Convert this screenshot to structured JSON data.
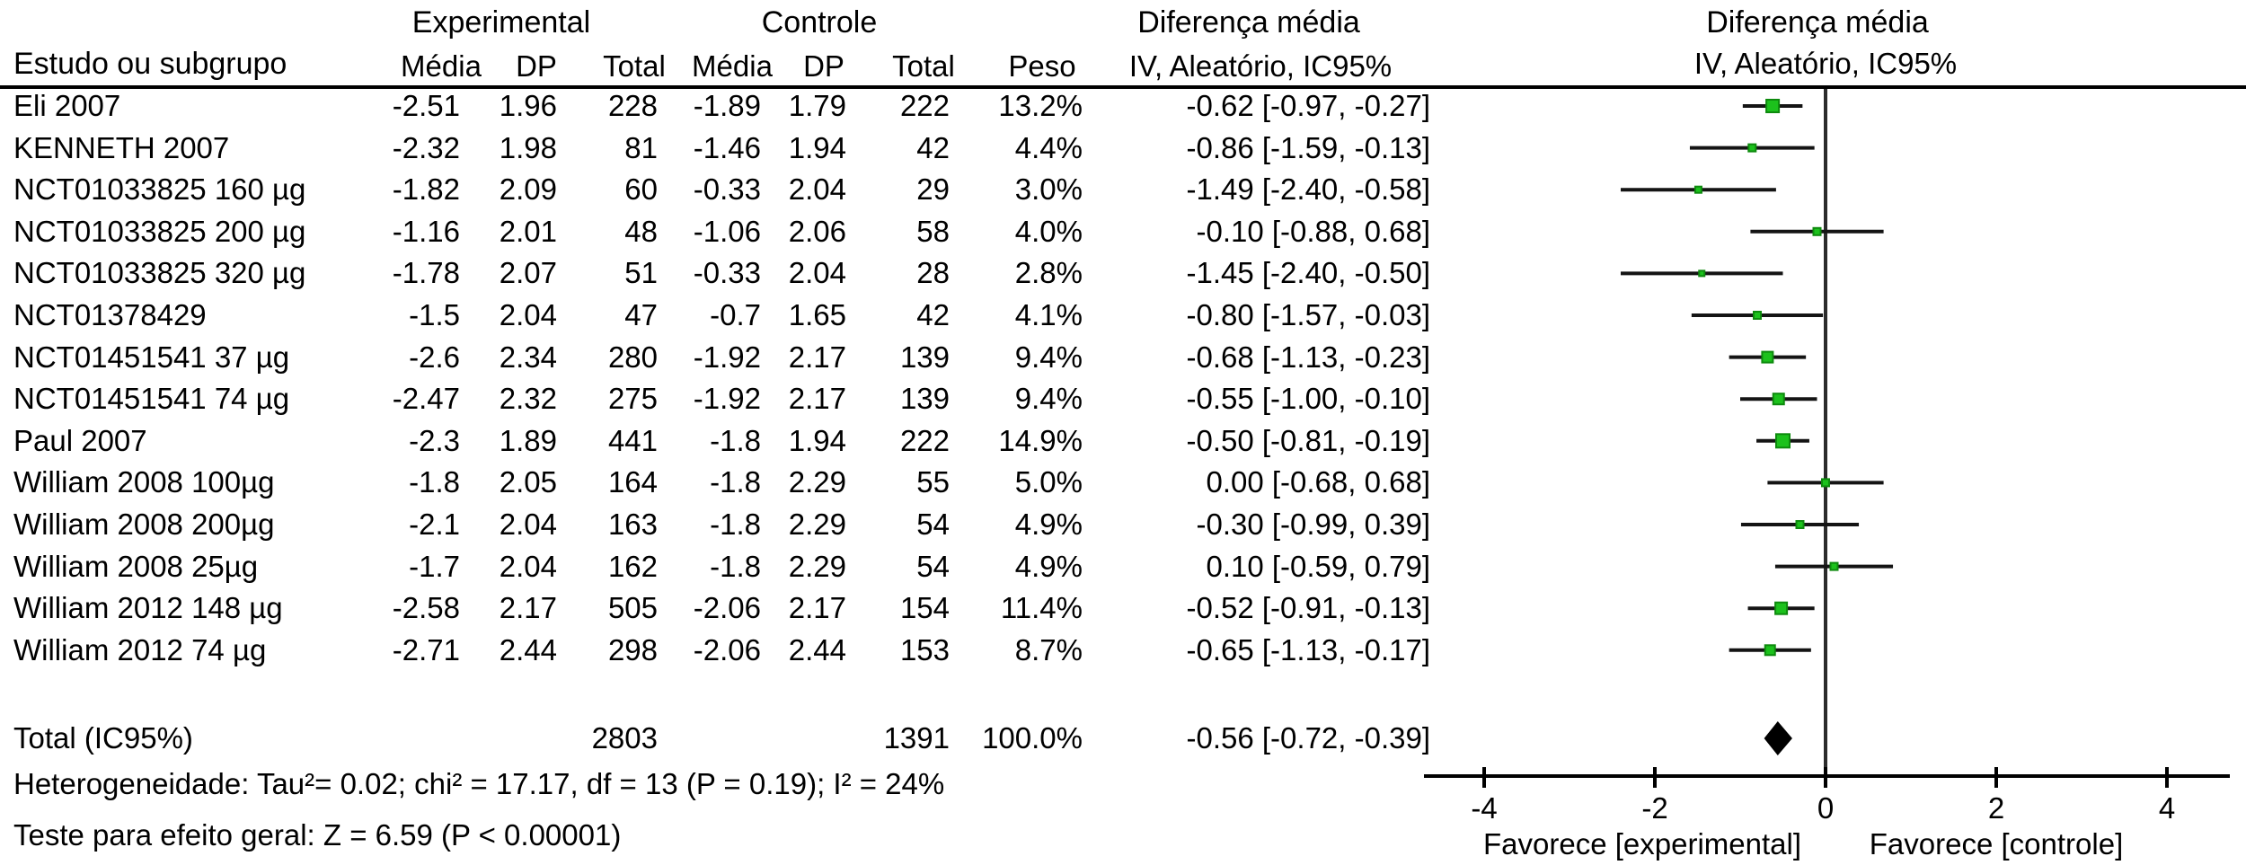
{
  "header": {
    "study_col": "Estudo ou subgrupo",
    "group_experimental": "Experimental",
    "group_control": "Controle",
    "group_effect": "Diferença média",
    "sub_mean_e": "Média",
    "sub_sd_e": "DP",
    "sub_total_e": "Total",
    "sub_mean_c": "Média",
    "sub_sd_c": "DP",
    "sub_total_c": "Total",
    "sub_weight": "Peso",
    "sub_effect": "IV, Aleatório,  IC95%",
    "plot_title": "Diferença média",
    "plot_subtitle": "IV,  Aleatório,  IC95%"
  },
  "chart_data": {
    "type": "forest",
    "effect_measure": "Diferença média (IV, Aleatório, IC95%)",
    "axis": {
      "ticks": [
        -4,
        -2,
        0,
        2,
        4
      ],
      "min": -4.65,
      "max": 4.75,
      "grid": false,
      "favors_left": "Favorece [experimental]",
      "favors_right": "Favorece [controle]"
    },
    "marker_color": "#1cc11c",
    "marker_edge": "#0d8a0d",
    "studies": [
      {
        "name": "Eli 2007",
        "mean_e": "-2.51",
        "sd_e": "1.96",
        "total_e": "228",
        "mean_c": "-1.89",
        "sd_c": "1.79",
        "total_c": "222",
        "weight": "13.2%",
        "effect": "-0.62 [-0.97, -0.27]",
        "est": -0.62,
        "lo": -0.97,
        "hi": -0.27,
        "w": 13.2
      },
      {
        "name": "KENNETH 2007",
        "mean_e": "-2.32",
        "sd_e": "1.98",
        "total_e": "81",
        "mean_c": "-1.46",
        "sd_c": "1.94",
        "total_c": "42",
        "weight": "4.4%",
        "effect": "-0.86 [-1.59, -0.13]",
        "est": -0.86,
        "lo": -1.59,
        "hi": -0.13,
        "w": 4.4
      },
      {
        "name": "NCT01033825 160 µg",
        "mean_e": "-1.82",
        "sd_e": "2.09",
        "total_e": "60",
        "mean_c": "-0.33",
        "sd_c": "2.04",
        "total_c": "29",
        "weight": "3.0%",
        "effect": "-1.49 [-2.40, -0.58]",
        "est": -1.49,
        "lo": -2.4,
        "hi": -0.58,
        "w": 3.0
      },
      {
        "name": "NCT01033825 200 µg",
        "mean_e": "-1.16",
        "sd_e": "2.01",
        "total_e": "48",
        "mean_c": "-1.06",
        "sd_c": "2.06",
        "total_c": "58",
        "weight": "4.0%",
        "effect": "-0.10 [-0.88, 0.68]",
        "est": -0.1,
        "lo": -0.88,
        "hi": 0.68,
        "w": 4.0
      },
      {
        "name": "NCT01033825 320 µg",
        "mean_e": "-1.78",
        "sd_e": "2.07",
        "total_e": "51",
        "mean_c": "-0.33",
        "sd_c": "2.04",
        "total_c": "28",
        "weight": "2.8%",
        "effect": "-1.45 [-2.40, -0.50]",
        "est": -1.45,
        "lo": -2.4,
        "hi": -0.5,
        "w": 2.8
      },
      {
        "name": "NCT01378429",
        "mean_e": "-1.5",
        "sd_e": "2.04",
        "total_e": "47",
        "mean_c": "-0.7",
        "sd_c": "1.65",
        "total_c": "42",
        "weight": "4.1%",
        "effect": "-0.80 [-1.57, -0.03]",
        "est": -0.8,
        "lo": -1.57,
        "hi": -0.03,
        "w": 4.1
      },
      {
        "name": "NCT01451541 37 µg",
        "mean_e": "-2.6",
        "sd_e": "2.34",
        "total_e": "280",
        "mean_c": "-1.92",
        "sd_c": "2.17",
        "total_c": "139",
        "weight": "9.4%",
        "effect": "-0.68 [-1.13, -0.23]",
        "est": -0.68,
        "lo": -1.13,
        "hi": -0.23,
        "w": 9.4
      },
      {
        "name": "NCT01451541 74 µg",
        "mean_e": "-2.47",
        "sd_e": "2.32",
        "total_e": "275",
        "mean_c": "-1.92",
        "sd_c": "2.17",
        "total_c": "139",
        "weight": "9.4%",
        "effect": "-0.55 [-1.00, -0.10]",
        "est": -0.55,
        "lo": -1.0,
        "hi": -0.1,
        "w": 9.4
      },
      {
        "name": "Paul 2007",
        "mean_e": "-2.3",
        "sd_e": "1.89",
        "total_e": "441",
        "mean_c": "-1.8",
        "sd_c": "1.94",
        "total_c": "222",
        "weight": "14.9%",
        "effect": "-0.50 [-0.81, -0.19]",
        "est": -0.5,
        "lo": -0.81,
        "hi": -0.19,
        "w": 14.9
      },
      {
        "name": "William 2008 100µg",
        "mean_e": "-1.8",
        "sd_e": "2.05",
        "total_e": "164",
        "mean_c": "-1.8",
        "sd_c": "2.29",
        "total_c": "55",
        "weight": "5.0%",
        "effect": "0.00 [-0.68, 0.68]",
        "est": 0.0,
        "lo": -0.68,
        "hi": 0.68,
        "w": 5.0
      },
      {
        "name": "William 2008 200µg",
        "mean_e": "-2.1",
        "sd_e": "2.04",
        "total_e": "163",
        "mean_c": "-1.8",
        "sd_c": "2.29",
        "total_c": "54",
        "weight": "4.9%",
        "effect": "-0.30 [-0.99, 0.39]",
        "est": -0.3,
        "lo": -0.99,
        "hi": 0.39,
        "w": 4.9
      },
      {
        "name": "William 2008 25µg",
        "mean_e": "-1.7",
        "sd_e": "2.04",
        "total_e": "162",
        "mean_c": "-1.8",
        "sd_c": "2.29",
        "total_c": "54",
        "weight": "4.9%",
        "effect": "0.10 [-0.59, 0.79]",
        "est": 0.1,
        "lo": -0.59,
        "hi": 0.79,
        "w": 4.9
      },
      {
        "name": "William 2012 148 µg",
        "mean_e": "-2.58",
        "sd_e": "2.17",
        "total_e": "505",
        "mean_c": "-2.06",
        "sd_c": "2.17",
        "total_c": "154",
        "weight": "11.4%",
        "effect": "-0.52 [-0.91, -0.13]",
        "est": -0.52,
        "lo": -0.91,
        "hi": -0.13,
        "w": 11.4
      },
      {
        "name": "William 2012 74 µg",
        "mean_e": "-2.71",
        "sd_e": "2.44",
        "total_e": "298",
        "mean_c": "-2.06",
        "sd_c": "2.44",
        "total_c": "153",
        "weight": "8.7%",
        "effect": "-0.65 [-1.13, -0.17]",
        "est": -0.65,
        "lo": -1.13,
        "hi": -0.17,
        "w": 8.7
      }
    ],
    "total": {
      "label": "Total (IC95%)",
      "total_e": "2803",
      "total_c": "1391",
      "weight": "100.0%",
      "effect": "-0.56 [-0.72, -0.39]",
      "est": -0.56,
      "lo": -0.72,
      "hi": -0.39
    },
    "heterogeneity": "Heterogeneidade: Tau²= 0.02; chi² = 17.17, df = 13 (P = 0.19); I² = 24%",
    "overall_test": "Teste para efeito geral: Z = 6.59 (P < 0.00001)"
  }
}
